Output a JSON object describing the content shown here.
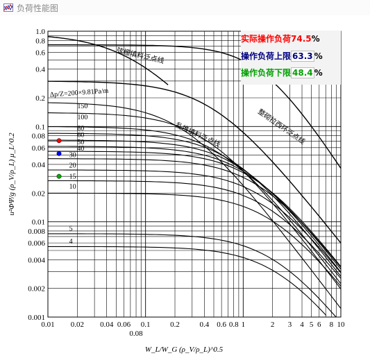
{
  "window": {
    "title": "负荷性能图"
  },
  "loads": [
    {
      "label": "实际操作负荷",
      "value": "74.5",
      "unit": "%",
      "color": "#ff0000"
    },
    {
      "label": "操作负荷上限",
      "value": "63.3",
      "unit": "%",
      "color": "#000080"
    },
    {
      "label": "操作负荷下限",
      "value": "48.4",
      "unit": "%",
      "color": "#00a000"
    }
  ],
  "chart_data": {
    "type": "line",
    "xlog": true,
    "ylog": true,
    "xlim": [
      0.01,
      10
    ],
    "ylim": [
      0.001,
      1.0
    ],
    "x_ticks": [
      "0.01",
      "0.02",
      "0.04",
      "0.06",
      "0.1",
      "0.2",
      "0.4",
      "0.6",
      "0.8",
      "1",
      "2",
      "3",
      "4",
      "5",
      "6",
      "8",
      "10"
    ],
    "x_extra_tick": "0.08",
    "y_ticks": [
      "1.0",
      "0.8",
      "0.6",
      "0.4",
      "0.2",
      "0.1",
      "0.08",
      "0.06",
      "0.04",
      "0.02",
      "0.01",
      "0.008",
      "0.006",
      "0.004",
      "0.002",
      "0.001"
    ],
    "xlabel": "W_L/W_G (ρ_V/ρ_L)^0.5",
    "ylabel": "u²ΦΨ/g (ρ_V/ρ_L) μ_L^0.2",
    "pressure_drop_prefix": "Δp/Z=200×9.81Pa/m",
    "pressure_drop_labels": [
      "150",
      "100",
      "80",
      "60",
      "50",
      "40",
      "30",
      "20",
      "15",
      "10",
      "5",
      "4"
    ],
    "pressure_drop_values": [
      200,
      150,
      100,
      80,
      60,
      50,
      40,
      30,
      20,
      15,
      10,
      5,
      4
    ],
    "pressure_drop_yintercepts": [
      0.18,
      0.14,
      0.1,
      0.085,
      0.072,
      0.062,
      0.055,
      0.046,
      0.035,
      0.027,
      0.02,
      0.0075,
      0.0055
    ],
    "flood_lines": [
      {
        "label": "弦栅填料泛点线",
        "y0": 0.95
      },
      {
        "label": "乱堆填料泛点线",
        "y0": 0.3
      },
      {
        "label": "整砌拉西环泛点线",
        "y0": 0.72
      }
    ],
    "markers": [
      {
        "x": 0.013,
        "y": 0.071,
        "color": "#ff0000"
      },
      {
        "x": 0.013,
        "y": 0.052,
        "color": "#0000ff"
      },
      {
        "x": 0.013,
        "y": 0.03,
        "color": "#00aa00"
      }
    ]
  }
}
